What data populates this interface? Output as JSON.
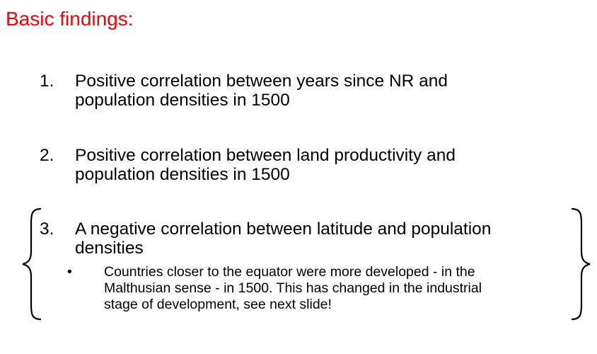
{
  "slide": {
    "title": "Basic findings:",
    "title_color": "#ff0000",
    "items": [
      {
        "number": "1.",
        "lines": [
          "Positive correlation between years since NR and",
          "population densities in 1500"
        ]
      },
      {
        "number": "2.",
        "lines": [
          "Positive correlation between land productivity and",
          "population densities in 1500"
        ]
      },
      {
        "number": "3.",
        "lines": [
          "A negative correlation between latitude and population",
          "densities"
        ],
        "sub_bullet": {
          "marker": "•",
          "lines": [
            "Countries closer to the equator were more developed - in the",
            "Malthusian sense - in 1500. This has changed in the industrial",
            "stage of development, see next slide!"
          ]
        }
      }
    ]
  }
}
